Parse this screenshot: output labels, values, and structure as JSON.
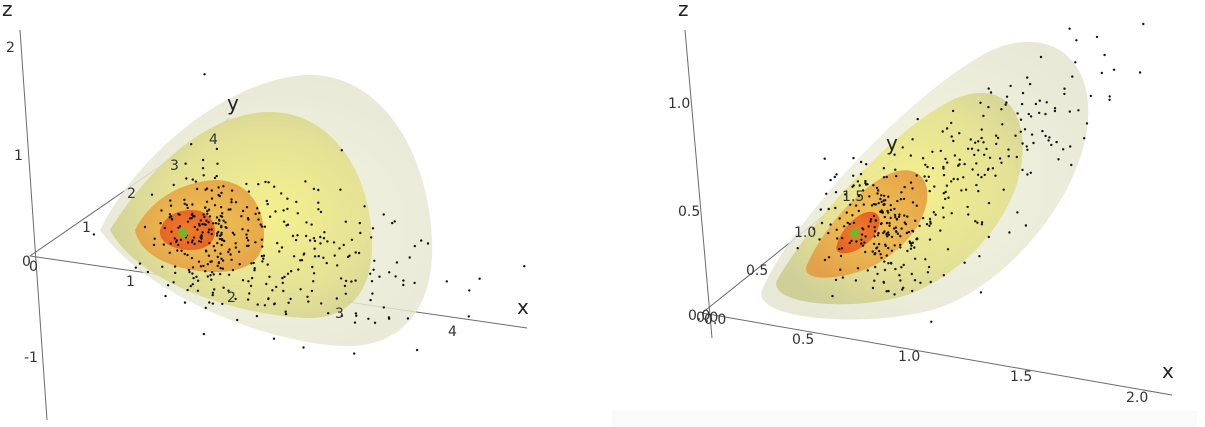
{
  "chart_data": [
    {
      "type": "scatter",
      "title": "",
      "xlabel": "x",
      "ylabel": "y",
      "zlabel": "z",
      "x_ticks": [
        "1",
        "2",
        "3",
        "4"
      ],
      "y_ticks": [
        "1",
        "2",
        "3",
        "4"
      ],
      "z_ticks": [
        "2",
        "1",
        "0",
        "-1"
      ],
      "origin_labels": [
        "0",
        "0"
      ],
      "xlim": [
        0,
        4.5
      ],
      "ylim": [
        0,
        4.5
      ],
      "zlim": [
        -1.3,
        2.2
      ],
      "contour_shells": 4,
      "shell_colors": [
        "#e9ead4",
        "#dedd8c",
        "#f0a040",
        "#e8661f"
      ],
      "center_point": {
        "x": 1.1,
        "y": 1.1,
        "z": 0.3,
        "color": "#7ab32a"
      },
      "points": 400,
      "grid": false
    },
    {
      "type": "scatter",
      "title": "",
      "xlabel": "x",
      "ylabel": "y",
      "zlabel": "z",
      "x_ticks": [
        "0.5",
        "1.0",
        "1.5",
        "2.0"
      ],
      "y_ticks": [
        "0.5",
        "1.0",
        "1.5"
      ],
      "z_ticks": [
        "1.0",
        "0.5"
      ],
      "origin_labels": [
        "0.0",
        "0.0",
        "0.0"
      ],
      "xlim": [
        0,
        2.1
      ],
      "ylim": [
        0,
        1.9
      ],
      "zlim": [
        0,
        1.3
      ],
      "contour_shells": 4,
      "shell_colors": [
        "#e9ead4",
        "#dedd8c",
        "#f0a040",
        "#e8661f"
      ],
      "center_point": {
        "x": 0.75,
        "y": 0.9,
        "z": 0.35,
        "color": "#7ab32a"
      },
      "points": 400,
      "grid": false
    }
  ]
}
